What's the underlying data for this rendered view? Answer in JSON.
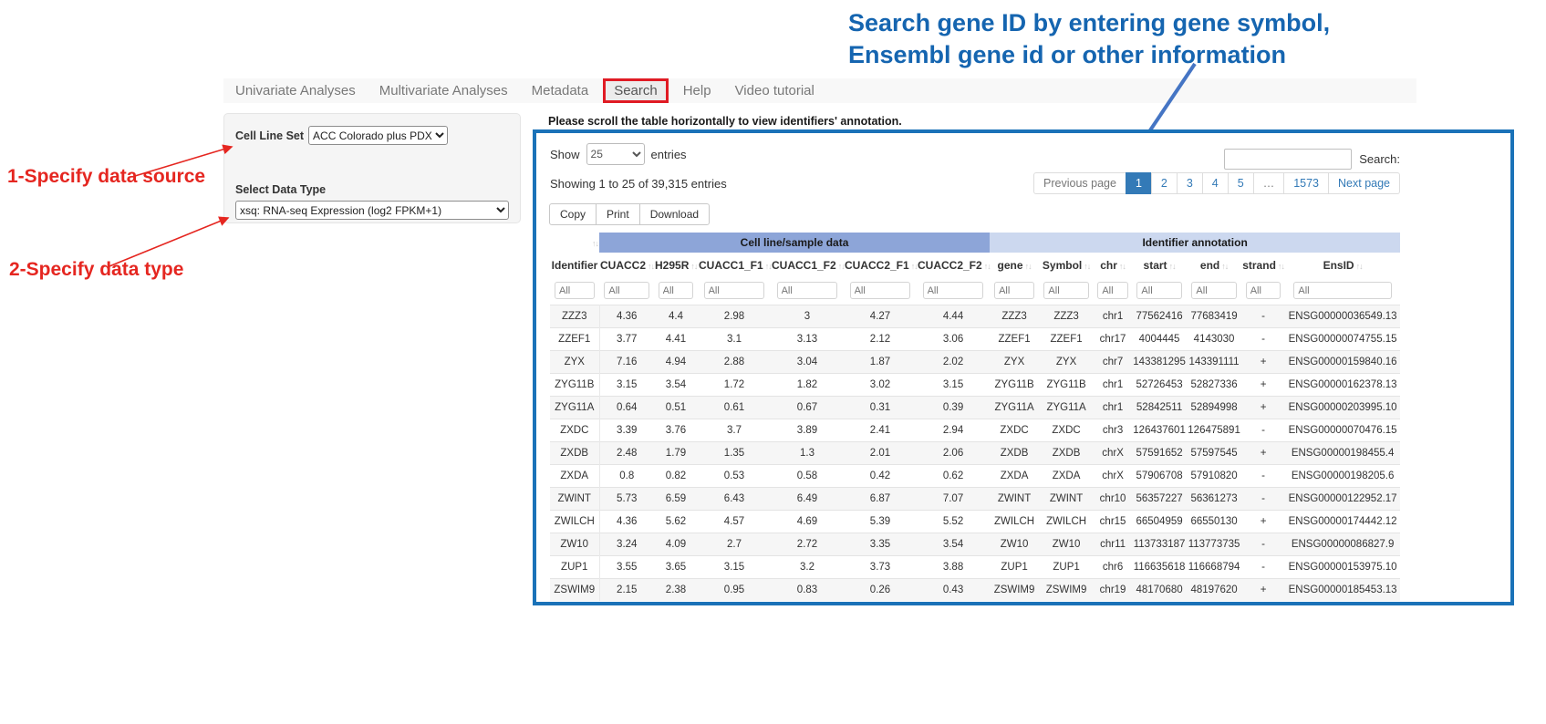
{
  "annotations": {
    "step1": "1-Specify data source",
    "step2": "2-Specify data type",
    "search_note_line1": "Search gene ID by entering gene symbol,",
    "search_note_line2": "Ensembl gene id or other information"
  },
  "nav": {
    "items": [
      {
        "label": "Univariate Analyses",
        "highlighted": false
      },
      {
        "label": "Multivariate Analyses",
        "highlighted": false
      },
      {
        "label": "Metadata",
        "highlighted": false
      },
      {
        "label": "Search",
        "highlighted": true
      },
      {
        "label": "Help",
        "highlighted": false
      },
      {
        "label": "Video tutorial",
        "highlighted": false
      }
    ]
  },
  "sidebar": {
    "cell_line_set_label": "Cell Line Set",
    "cell_line_set_value": "ACC Colorado plus PDX",
    "data_type_label": "Select Data Type",
    "data_type_value": "xsq: RNA-seq Expression (log2 FPKM+1)"
  },
  "table_panel": {
    "scroll_hint": "Please scroll the table horizontally to view identifiers' annotation.",
    "show_label": "Show",
    "entries_label": "entries",
    "page_length": "25",
    "showing_text": "Showing 1 to 25 of 39,315 entries",
    "search_label": "Search:",
    "search_value": "",
    "buttons": [
      "Copy",
      "Print",
      "Download"
    ],
    "pagination": {
      "previous": "Previous page",
      "pages": [
        "1",
        "2",
        "3",
        "4",
        "5",
        "…",
        "1573"
      ],
      "active_page": "1",
      "next": "Next page"
    },
    "group_headers": {
      "cell_line": "Cell line/sample data",
      "identifier_annotation": "Identifier annotation"
    },
    "columns": [
      "Identifier",
      "CUACC2",
      "H295R",
      "CUACC1_F1",
      "CUACC1_F2",
      "CUACC2_F1",
      "CUACC2_F2",
      "gene",
      "Symbol",
      "chr",
      "start",
      "end",
      "strand",
      "EnsID"
    ],
    "filter_placeholder": "All",
    "rows": [
      [
        "ZZZ3",
        "4.36",
        "4.4",
        "2.98",
        "3",
        "4.27",
        "4.44",
        "ZZZ3",
        "ZZZ3",
        "chr1",
        "77562416",
        "77683419",
        "-",
        "ENSG00000036549.13"
      ],
      [
        "ZZEF1",
        "3.77",
        "4.41",
        "3.1",
        "3.13",
        "2.12",
        "3.06",
        "ZZEF1",
        "ZZEF1",
        "chr17",
        "4004445",
        "4143030",
        "-",
        "ENSG00000074755.15"
      ],
      [
        "ZYX",
        "7.16",
        "4.94",
        "2.88",
        "3.04",
        "1.87",
        "2.02",
        "ZYX",
        "ZYX",
        "chr7",
        "143381295",
        "143391111",
        "+",
        "ENSG00000159840.16"
      ],
      [
        "ZYG11B",
        "3.15",
        "3.54",
        "1.72",
        "1.82",
        "3.02",
        "3.15",
        "ZYG11B",
        "ZYG11B",
        "chr1",
        "52726453",
        "52827336",
        "+",
        "ENSG00000162378.13"
      ],
      [
        "ZYG11A",
        "0.64",
        "0.51",
        "0.61",
        "0.67",
        "0.31",
        "0.39",
        "ZYG11A",
        "ZYG11A",
        "chr1",
        "52842511",
        "52894998",
        "+",
        "ENSG00000203995.10"
      ],
      [
        "ZXDC",
        "3.39",
        "3.76",
        "3.7",
        "3.89",
        "2.41",
        "2.94",
        "ZXDC",
        "ZXDC",
        "chr3",
        "126437601",
        "126475891",
        "-",
        "ENSG00000070476.15"
      ],
      [
        "ZXDB",
        "2.48",
        "1.79",
        "1.35",
        "1.3",
        "2.01",
        "2.06",
        "ZXDB",
        "ZXDB",
        "chrX",
        "57591652",
        "57597545",
        "+",
        "ENSG00000198455.4"
      ],
      [
        "ZXDA",
        "0.8",
        "0.82",
        "0.53",
        "0.58",
        "0.42",
        "0.62",
        "ZXDA",
        "ZXDA",
        "chrX",
        "57906708",
        "57910820",
        "-",
        "ENSG00000198205.6"
      ],
      [
        "ZWINT",
        "5.73",
        "6.59",
        "6.43",
        "6.49",
        "6.87",
        "7.07",
        "ZWINT",
        "ZWINT",
        "chr10",
        "56357227",
        "56361273",
        "-",
        "ENSG00000122952.17"
      ],
      [
        "ZWILCH",
        "4.36",
        "5.62",
        "4.57",
        "4.69",
        "5.39",
        "5.52",
        "ZWILCH",
        "ZWILCH",
        "chr15",
        "66504959",
        "66550130",
        "+",
        "ENSG00000174442.12"
      ],
      [
        "ZW10",
        "3.24",
        "4.09",
        "2.7",
        "2.72",
        "3.35",
        "3.54",
        "ZW10",
        "ZW10",
        "chr11",
        "113733187",
        "113773735",
        "-",
        "ENSG00000086827.9"
      ],
      [
        "ZUP1",
        "3.55",
        "3.65",
        "3.15",
        "3.2",
        "3.73",
        "3.88",
        "ZUP1",
        "ZUP1",
        "chr6",
        "116635618",
        "116668794",
        "-",
        "ENSG00000153975.10"
      ],
      [
        "ZSWIM9",
        "2.15",
        "2.38",
        "0.95",
        "0.83",
        "0.26",
        "0.43",
        "ZSWIM9",
        "ZSWIM9",
        "chr19",
        "48170680",
        "48197620",
        "+",
        "ENSG00000185453.13"
      ]
    ]
  },
  "colors": {
    "panel_border_blue": "#1a72b8",
    "group_header_dark": "#8da5d8",
    "group_header_light": "#ccd8ef",
    "pagination_active": "#337ab7",
    "annotation_red": "#e52620",
    "annotation_blue": "#1565b0",
    "nav_highlight_red": "#e01b24"
  }
}
